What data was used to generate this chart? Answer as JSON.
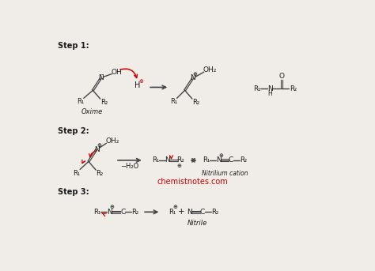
{
  "bg_color": "#f0ede8",
  "text_color": "#1a1a1a",
  "red_color": "#cc0000",
  "line_color": "#444444",
  "step1_label": "Step 1:",
  "step2_label": "Step 2:",
  "step3_label": "Step 3:",
  "oxime_label": "Oxime",
  "nitrilium_label": "Nitrilium cation",
  "nitrile_label": "Nitrile",
  "website": "chemistnotes.com",
  "website_color": "#cc0000"
}
